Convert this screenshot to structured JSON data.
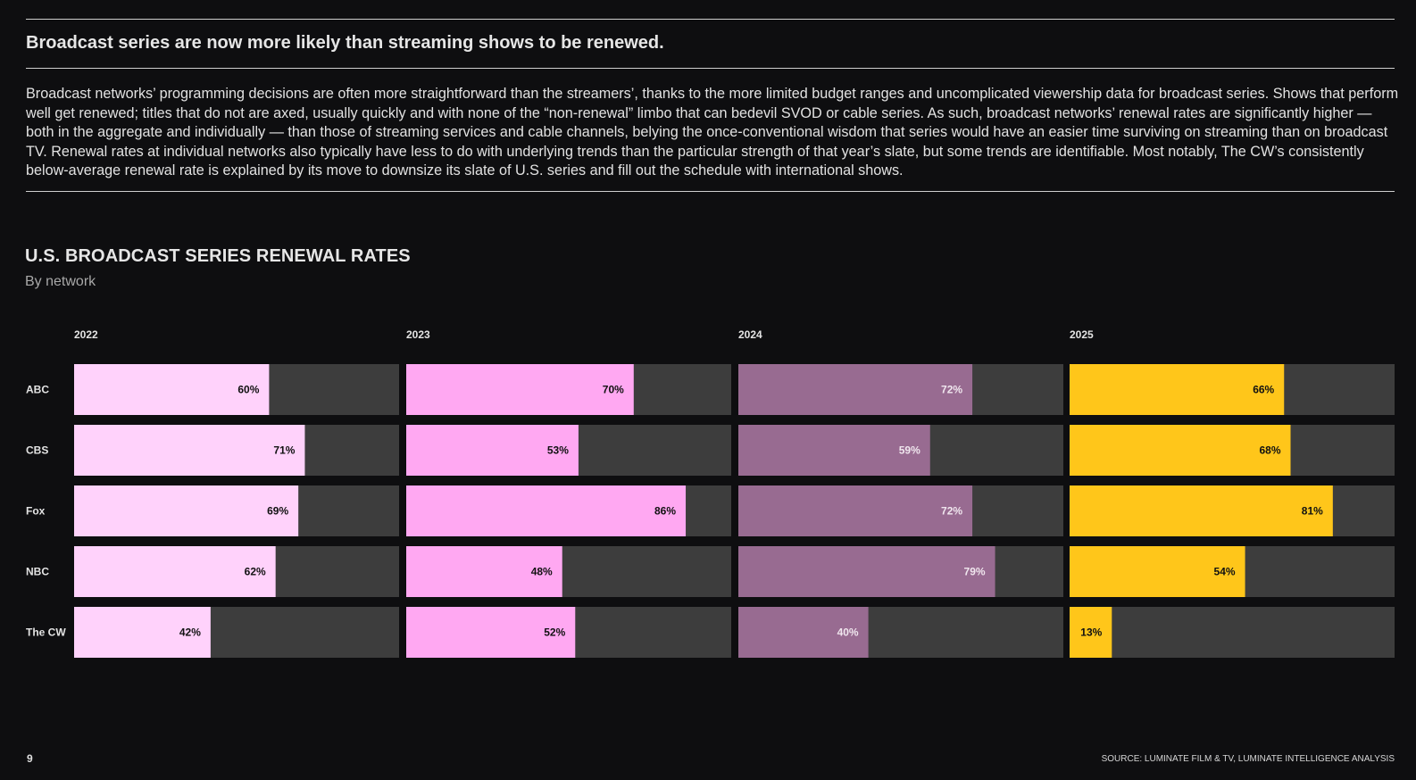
{
  "headline": "Broadcast series are now more likely than streaming shows to be renewed.",
  "body": "Broadcast networks’ programming decisions are often more straightforward than the streamers’, thanks to the more limited budget ranges and uncomplicated viewership data for broadcast series. Shows that perform well get renewed; titles that do not are axed, usually quickly and with none of the “non-renewal” limbo that can bedevil SVOD or cable series. As such, broadcast networks’ renewal rates are significantly higher — both in the aggregate and individually — than those of streaming services and cable channels, belying the once-conventional wisdom that series would have an easier time surviving on streaming than on broadcast TV. Renewal rates at individual networks also typically have less to do with underlying trends than the particular strength of that year’s slate, but some trends are identifiable. Most notably, The CW’s consistently below-average renewal rate is explained by its move to downsize its slate of U.S. series and fill out the schedule with international shows.",
  "page_number": "9",
  "source": "SOURCE: LUMINATE FILM & TV, LUMINATE INTELLIGENCE ANALYSIS",
  "colors": {
    "background": "#0e0e10",
    "track": "#3d3d3d",
    "2022": "#ffd2fb",
    "2023": "#ffa8f2",
    "2024": "#986b91",
    "2025": "#ffc61a"
  },
  "chart_data": {
    "type": "bar",
    "orientation": "horizontal",
    "layout": "small-multiples",
    "title": "U.S. BROADCAST SERIES RENEWAL RATES",
    "subtitle": "By network",
    "categories": [
      "ABC",
      "CBS",
      "Fox",
      "NBC",
      "The CW"
    ],
    "unit": "%",
    "xlim": [
      0,
      100
    ],
    "series": [
      {
        "name": "2022",
        "values": [
          60,
          71,
          69,
          62,
          42
        ],
        "labels": [
          "60%",
          "71%",
          "69%",
          "62%",
          "42%"
        ],
        "color": "#ffd2fb",
        "label_color": "#111111"
      },
      {
        "name": "2023",
        "values": [
          70,
          53,
          86,
          48,
          52
        ],
        "labels": [
          "70%",
          "53%",
          "86%",
          "48%",
          "52%"
        ],
        "color": "#ffa8f2",
        "label_color": "#111111"
      },
      {
        "name": "2024",
        "values": [
          72,
          59,
          72,
          79,
          40
        ],
        "labels": [
          "72%",
          "59%",
          "72%",
          "79%",
          "40%"
        ],
        "color": "#986b91",
        "label_color": "#f0e6ee"
      },
      {
        "name": "2025",
        "values": [
          66,
          68,
          81,
          54,
          13
        ],
        "labels": [
          "66%",
          "68%",
          "81%",
          "54%",
          "13%"
        ],
        "color": "#ffc61a",
        "label_color": "#111111"
      }
    ]
  }
}
